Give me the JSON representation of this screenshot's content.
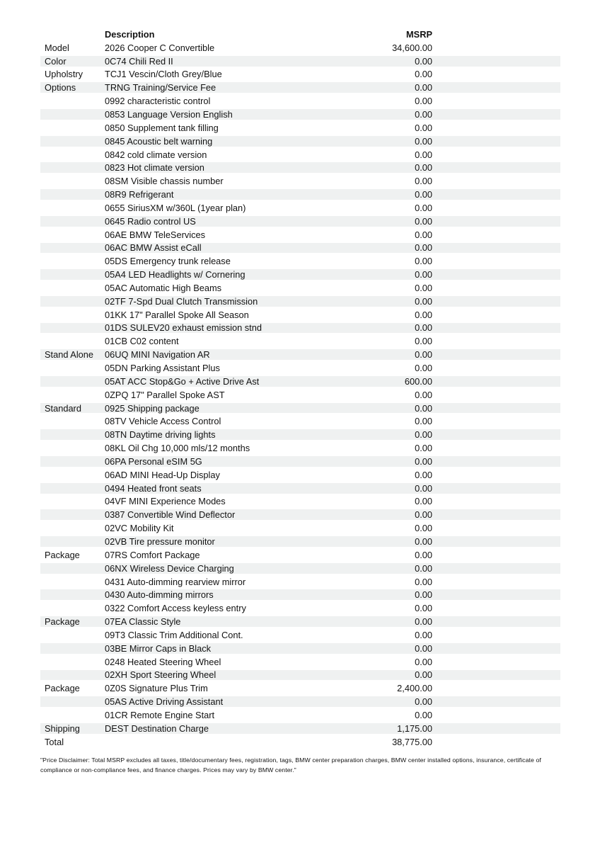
{
  "colors": {
    "stripe": "#eff1f1",
    "text": "#121212",
    "background": "#ffffff"
  },
  "table": {
    "headers": {
      "category": "",
      "description": "Description",
      "msrp": "MSRP"
    },
    "rows": [
      {
        "category": "Model",
        "description": "2026 Cooper C Convertible",
        "msrp": "34,600.00"
      },
      {
        "category": "Color",
        "description": "0C74 Chili Red II",
        "msrp": "0.00"
      },
      {
        "category": "Upholstry",
        "description": "TCJ1 Vescin/Cloth Grey/Blue",
        "msrp": "0.00"
      },
      {
        "category": "Options",
        "description": "TRNG Training/Service Fee",
        "msrp": "0.00"
      },
      {
        "category": "",
        "description": "0992 characteristic control",
        "msrp": "0.00"
      },
      {
        "category": "",
        "description": "0853 Language Version English",
        "msrp": "0.00"
      },
      {
        "category": "",
        "description": "0850 Supplement tank filling",
        "msrp": "0.00"
      },
      {
        "category": "",
        "description": "0845 Acoustic belt warning",
        "msrp": "0.00"
      },
      {
        "category": "",
        "description": "0842 cold climate version",
        "msrp": "0.00"
      },
      {
        "category": "",
        "description": "0823 Hot climate version",
        "msrp": "0.00"
      },
      {
        "category": "",
        "description": "08SM Visible chassis number",
        "msrp": "0.00"
      },
      {
        "category": "",
        "description": "08R9 Refrigerant",
        "msrp": "0.00"
      },
      {
        "category": "",
        "description": "0655 SiriusXM w/360L (1year plan)",
        "msrp": "0.00"
      },
      {
        "category": "",
        "description": "0645 Radio control US",
        "msrp": "0.00"
      },
      {
        "category": "",
        "description": "06AE BMW TeleServices",
        "msrp": "0.00"
      },
      {
        "category": "",
        "description": "06AC BMW Assist eCall",
        "msrp": "0.00"
      },
      {
        "category": "",
        "description": "05DS Emergency trunk release",
        "msrp": "0.00"
      },
      {
        "category": "",
        "description": "05A4 LED Headlights w/ Cornering",
        "msrp": "0.00"
      },
      {
        "category": "",
        "description": "05AC Automatic High Beams",
        "msrp": "0.00"
      },
      {
        "category": "",
        "description": "02TF 7-Spd Dual Clutch Transmission",
        "msrp": "0.00"
      },
      {
        "category": "",
        "description": "01KK 17\" Parallel Spoke All Season",
        "msrp": "0.00"
      },
      {
        "category": "",
        "description": "01DS SULEV20 exhaust emission stnd",
        "msrp": "0.00"
      },
      {
        "category": "",
        "description": "01CB C02 content",
        "msrp": "0.00"
      },
      {
        "category": "Stand Alone",
        "description": "06UQ MINI Navigation AR",
        "msrp": "0.00"
      },
      {
        "category": "",
        "description": "05DN Parking Assistant Plus",
        "msrp": "0.00"
      },
      {
        "category": "",
        "description": "05AT ACC Stop&Go + Active Drive Ast",
        "msrp": "600.00"
      },
      {
        "category": "",
        "description": "0ZPQ 17\" Parallel Spoke AST",
        "msrp": "0.00"
      },
      {
        "category": "Standard",
        "description": "0925 Shipping package",
        "msrp": "0.00"
      },
      {
        "category": "",
        "description": "08TV Vehicle Access Control",
        "msrp": "0.00"
      },
      {
        "category": "",
        "description": "08TN Daytime driving lights",
        "msrp": "0.00"
      },
      {
        "category": "",
        "description": "08KL Oil Chg 10,000 mls/12 months",
        "msrp": "0.00"
      },
      {
        "category": "",
        "description": "06PA Personal eSIM 5G",
        "msrp": "0.00"
      },
      {
        "category": "",
        "description": "06AD MINI Head-Up Display",
        "msrp": "0.00"
      },
      {
        "category": "",
        "description": "0494 Heated front seats",
        "msrp": "0.00"
      },
      {
        "category": "",
        "description": "04VF MINI Experience Modes",
        "msrp": "0.00"
      },
      {
        "category": "",
        "description": "0387 Convertible Wind Deflector",
        "msrp": "0.00"
      },
      {
        "category": "",
        "description": "02VC Mobility Kit",
        "msrp": "0.00"
      },
      {
        "category": "",
        "description": "02VB Tire pressure monitor",
        "msrp": "0.00"
      },
      {
        "category": "Package",
        "description": "07RS Comfort Package",
        "msrp": "0.00"
      },
      {
        "category": "",
        "description": "06NX Wireless Device Charging",
        "msrp": "0.00"
      },
      {
        "category": "",
        "description": "0431 Auto-dimming rearview mirror",
        "msrp": "0.00"
      },
      {
        "category": "",
        "description": "0430 Auto-dimming mirrors",
        "msrp": "0.00"
      },
      {
        "category": "",
        "description": "0322 Comfort Access keyless entry",
        "msrp": "0.00"
      },
      {
        "category": "Package",
        "description": "07EA Classic Style",
        "msrp": "0.00"
      },
      {
        "category": "",
        "description": "09T3 Classic Trim Additional Cont.",
        "msrp": "0.00"
      },
      {
        "category": "",
        "description": "03BE Mirror Caps in Black",
        "msrp": "0.00"
      },
      {
        "category": "",
        "description": "0248 Heated Steering Wheel",
        "msrp": "0.00"
      },
      {
        "category": "",
        "description": "02XH Sport Steering Wheel",
        "msrp": "0.00"
      },
      {
        "category": "Package",
        "description": "0Z0S Signature Plus Trim",
        "msrp": "2,400.00"
      },
      {
        "category": "",
        "description": "05AS Active Driving Assistant",
        "msrp": "0.00"
      },
      {
        "category": "",
        "description": "01CR Remote Engine Start",
        "msrp": "0.00"
      },
      {
        "category": "Shipping",
        "description": "DEST Destination Charge",
        "msrp": "1,175.00"
      },
      {
        "category": "Total",
        "description": "",
        "msrp": "38,775.00"
      }
    ]
  },
  "disclaimer": "\"Price Disclaimer: Total MSRP excludes all taxes, title/documentary fees, registration, tags, BMW center preparation charges, BMW center installed options, insurance, certificate of compliance or non-compliance fees, and finance charges. Prices may vary by BMW center.\""
}
